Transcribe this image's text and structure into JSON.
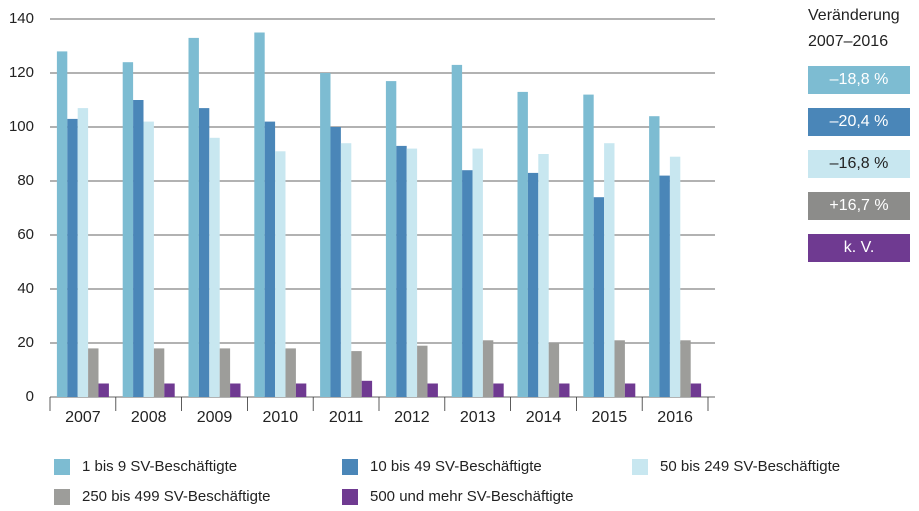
{
  "chart_data": {
    "type": "bar",
    "categories": [
      "2007",
      "2008",
      "2009",
      "2010",
      "2011",
      "2012",
      "2013",
      "2014",
      "2015",
      "2016"
    ],
    "series": [
      {
        "name": "1 bis 9 SV-Beschäftigte",
        "color": "#7dbcd2",
        "values": [
          128,
          124,
          133,
          135,
          120,
          117,
          123,
          113,
          112,
          104
        ]
      },
      {
        "name": "10 bis 49 SV-Beschäftigte",
        "color": "#4a86b8",
        "values": [
          103,
          110,
          107,
          102,
          100,
          93,
          84,
          83,
          74,
          82
        ]
      },
      {
        "name": "50 bis 249 SV-Beschäftigte",
        "color": "#c8e7f0",
        "values": [
          107,
          102,
          96,
          91,
          94,
          92,
          92,
          90,
          94,
          89
        ]
      },
      {
        "name": "250 bis 499 SV-Beschäftigte",
        "color": "#9d9d9a",
        "values": [
          18,
          18,
          18,
          18,
          17,
          19,
          21,
          20,
          21,
          21
        ]
      },
      {
        "name": "500 und mehr SV-Beschäftigte",
        "color": "#6f3a91",
        "values": [
          5,
          5,
          5,
          5,
          6,
          5,
          5,
          5,
          5,
          5
        ]
      }
    ],
    "ylim": [
      0,
      140
    ],
    "yticks": [
      0,
      20,
      40,
      60,
      80,
      100,
      120,
      140
    ],
    "grid": true,
    "change_title": [
      "Veränderung",
      "2007–2016"
    ],
    "changes": [
      {
        "label": "–18,8 %",
        "color": "#7dbcd2",
        "text_color": "#ffffff"
      },
      {
        "label": "–20,4 %",
        "color": "#4a86b8",
        "text_color": "#ffffff"
      },
      {
        "label": "–16,8 %",
        "color": "#c8e7f0",
        "text_color": "#222222"
      },
      {
        "label": "+16,7 %",
        "color": "#8c8c8a",
        "text_color": "#ffffff"
      },
      {
        "label": "k. V.",
        "color": "#6f3a91",
        "text_color": "#ffffff"
      }
    ]
  }
}
